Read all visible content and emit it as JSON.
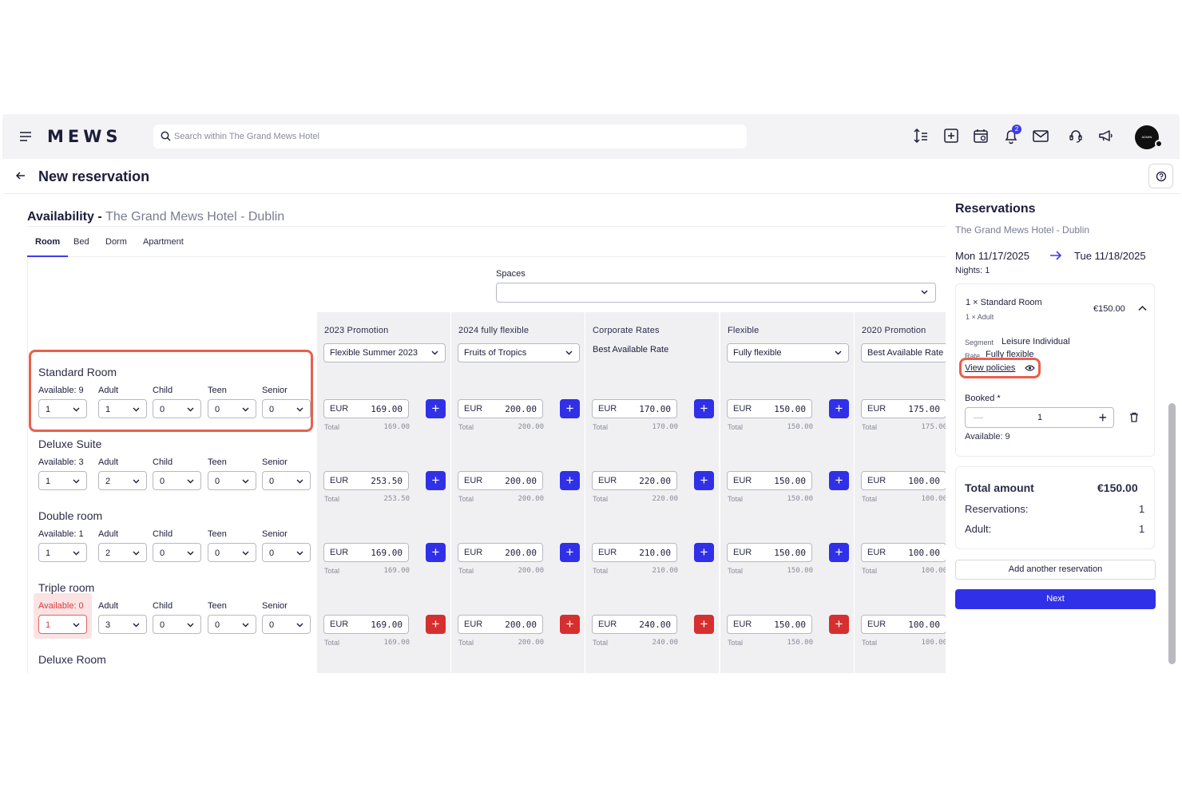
{
  "topbar": {
    "logo": "MEWS",
    "search_placeholder": "Search within The Grand Mews Hotel",
    "notification_count": "2",
    "avatar_text": "ADMIN"
  },
  "page": {
    "title": "New reservation"
  },
  "availability": {
    "title": "Availability -",
    "hotel": "The Grand Mews Hotel - Dublin",
    "tabs": [
      "Room",
      "Bed",
      "Dorm",
      "Apartment"
    ],
    "active_tab": "Room",
    "spaces_label": "Spaces",
    "spaces_value": "",
    "column_labels": {
      "adult": "Adult",
      "child": "Child",
      "teen": "Teen",
      "senior": "Senior",
      "total": "Total",
      "currency": "EUR"
    },
    "rates": [
      {
        "group": "2023 Promotion",
        "selected": "Flexible Summer 2023",
        "is_select": true
      },
      {
        "group": "2024 fully flexible",
        "selected": "Fruits of Tropics",
        "is_select": true
      },
      {
        "group": "Corporate Rates",
        "selected": "Best Available Rate",
        "is_select": false
      },
      {
        "group": "Flexible",
        "selected": "Fully flexible",
        "is_select": true
      },
      {
        "group": "2020 Promotion",
        "selected": "Best Available Rate",
        "is_select": true
      }
    ],
    "rooms": [
      {
        "name": "Standard Room",
        "available": "Available: 9",
        "quantity": "1",
        "adult": "1",
        "child": "0",
        "teen": "0",
        "senior": "0",
        "prices": [
          "169.00",
          "200.00",
          "170.00",
          "150.00",
          "175.00"
        ],
        "bookable": true
      },
      {
        "name": "Deluxe Suite",
        "available": "Available: 3",
        "quantity": "1",
        "adult": "2",
        "child": "0",
        "teen": "0",
        "senior": "0",
        "prices": [
          "253.50",
          "200.00",
          "220.00",
          "150.00",
          "100.00"
        ],
        "bookable": true
      },
      {
        "name": "Double room",
        "available": "Available: 1",
        "quantity": "1",
        "adult": "2",
        "child": "0",
        "teen": "0",
        "senior": "0",
        "prices": [
          "169.00",
          "200.00",
          "210.00",
          "150.00",
          "100.00"
        ],
        "bookable": true
      },
      {
        "name": "Triple room",
        "available": "Available: 0",
        "quantity": "1",
        "adult": "3",
        "child": "0",
        "teen": "0",
        "senior": "0",
        "prices": [
          "169.00",
          "200.00",
          "240.00",
          "150.00",
          "100.00"
        ],
        "bookable": false
      },
      {
        "name": "Deluxe Room"
      }
    ],
    "colors": {
      "add": "#3030e8",
      "add_unavailable": "#d62f2f",
      "highlight": "#e8604c"
    }
  },
  "sidebar": {
    "title": "Reservations",
    "hotel": "The Grand Mews Hotel - Dublin",
    "date_from": "Mon 11/17/2025",
    "date_to": "Tue 11/18/2025",
    "nights": "Nights: 1",
    "reservation": {
      "room": "1 × Standard Room",
      "guests": "1 × Adult",
      "price": "€150.00",
      "segment_label": "Segment",
      "segment_value": "Leisure Individual",
      "rate_label": "Rate",
      "rate_value": "Fully flexible",
      "policies_link": "View policies",
      "booked_label": "Booked *",
      "booked_value": "1",
      "available": "Available: 9"
    },
    "summary": {
      "total_label": "Total amount",
      "total_value": "€150.00",
      "reservations_label": "Reservations:",
      "reservations_value": "1",
      "adult_label": "Adult:",
      "adult_value": "1"
    },
    "add_another": "Add another reservation",
    "next": "Next"
  }
}
